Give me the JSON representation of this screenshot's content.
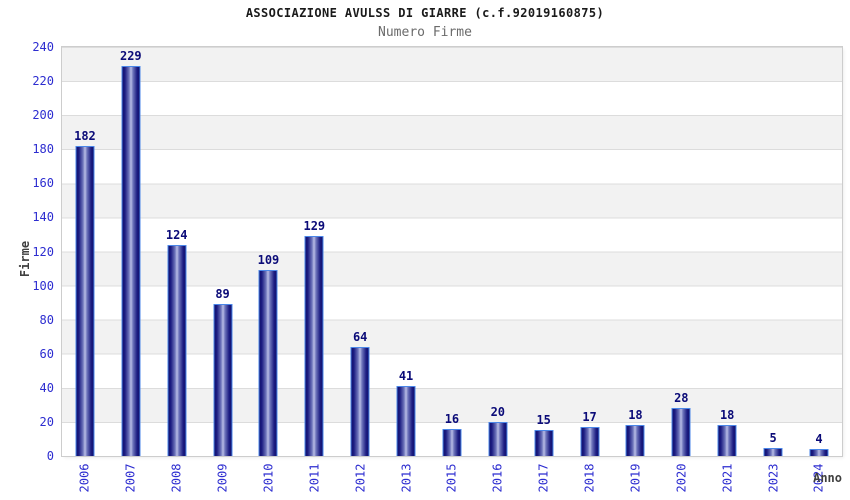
{
  "chart_data": {
    "type": "bar",
    "title": "ASSOCIAZIONE AVULSS DI GIARRE (c.f.92019160875)",
    "subtitle": "Numero Firme",
    "xlabel": "Anno",
    "ylabel": "Firme",
    "categories": [
      "2006",
      "2007",
      "2008",
      "2009",
      "2010",
      "2011",
      "2012",
      "2013",
      "2015",
      "2016",
      "2017",
      "2018",
      "2019",
      "2020",
      "2021",
      "2023",
      "2024"
    ],
    "values": [
      182,
      229,
      124,
      89,
      109,
      129,
      64,
      41,
      16,
      20,
      15,
      17,
      18,
      28,
      18,
      5,
      4
    ],
    "ylim": [
      0,
      240
    ],
    "ytick_step": 20,
    "y_ticks": [
      0,
      20,
      40,
      60,
      80,
      100,
      120,
      140,
      160,
      180,
      200,
      220,
      240
    ],
    "grid": "horizontal gridlines with alternating gray/white bands",
    "legend": "none",
    "x_tick_rotation_deg": 90,
    "notes": "years 2014 and 2022 absent from axis"
  },
  "colors": {
    "title": "#1a1a1a",
    "subtitle": "#6b6b6b",
    "axis_title": "#404040",
    "tick_label_blue": "#2d2dd0",
    "value_label_navy": "#0b0b78",
    "bar_border_lightblue": "#4a86e8",
    "bar_gradient_dark": "#12126e",
    "bar_gradient_light": "#b8bde6",
    "band_gray": "#f2f2f2",
    "grid_line": "#dcdcdc",
    "background": "#ffffff"
  }
}
